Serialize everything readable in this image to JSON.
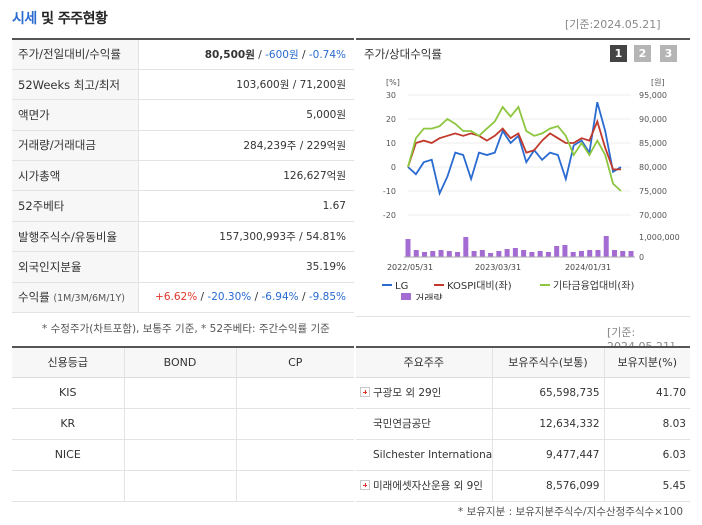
{
  "header": {
    "title_accent": "시세",
    "title_rest": " 및 주주현황",
    "date": "[기준:2024.05.21]"
  },
  "summary": {
    "rows": [
      {
        "label": "주가/전일대비/수익률",
        "value": "",
        "price": "80,500원",
        "change": "-600원",
        "rate": "-0.74%"
      },
      {
        "label": "52Weeks 최고/최저",
        "value": "103,600원 / 71,200원"
      },
      {
        "label": "액면가",
        "value": "5,000원"
      },
      {
        "label": "거래량/거래대금",
        "value": "284,239주 / 229억원"
      },
      {
        "label": "시가총액",
        "value": "126,627억원"
      },
      {
        "label": "52주베타",
        "value": "1.67"
      },
      {
        "label": "발행주식수/유동비율",
        "value": "157,300,993주 / 54.81%"
      },
      {
        "label": "외국인지분율",
        "value": "35.19%"
      },
      {
        "label": "수익률",
        "label_sub": "(1M/3M/6M/1Y)",
        "value": "",
        "r1": "+6.62%",
        "r3": "-20.30%",
        "r6": "-6.94%",
        "r12": "-9.85%"
      }
    ],
    "note": "* 수정주가(차트포함), 보통주 기준, * 52주베타: 주간수익률 기준"
  },
  "chart": {
    "title": "주가/상대수익률",
    "buttons": [
      "1",
      "2",
      "3"
    ],
    "left_unit": "[%]",
    "right_unit": "[원]",
    "legend": {
      "lg": "LG",
      "kospi": "KOSPI대비(좌)",
      "fin": "기타금융업대비(좌)",
      "volume": "거래량"
    },
    "colors": {
      "lg": "#2a6bd1",
      "kospi": "#c0392b",
      "fin": "#8dc63f",
      "volume": "#a46bd2"
    }
  },
  "chart_data": {
    "type": "line",
    "x_ticks": [
      "2022/05/31",
      "2023/03/31",
      "2024/01/31"
    ],
    "ylim_left": [
      -20,
      30
    ],
    "yticks_left": [
      "30",
      "20",
      "10",
      "0",
      "-10",
      "-20"
    ],
    "ylim_right": [
      70000,
      95000
    ],
    "yticks_right": [
      "95,000",
      "90,000",
      "85,000",
      "80,000",
      "75,000",
      "70,000"
    ],
    "volume_ticks": [
      "1,000,000",
      "0"
    ],
    "series": [
      {
        "name": "LG",
        "values": [
          0,
          -3,
          2,
          3,
          -11,
          -4,
          6,
          5,
          -5,
          6,
          5,
          6,
          15,
          10,
          13,
          2,
          7,
          3,
          6,
          5,
          -5,
          9,
          11,
          6,
          27,
          15,
          -2,
          0
        ]
      },
      {
        "name": "KOSPI대비(좌)",
        "values": [
          0,
          10,
          11,
          10,
          12,
          13,
          14,
          13,
          14,
          13,
          11,
          13,
          16,
          12,
          14,
          6,
          7,
          11,
          14,
          12,
          10,
          10,
          12,
          11,
          19,
          8,
          -1,
          -1
        ]
      },
      {
        "name": "기타금융업대비(좌)",
        "values": [
          0,
          12,
          16,
          16,
          17,
          20,
          18,
          15,
          15,
          13,
          16,
          19,
          25,
          21,
          25,
          15,
          13,
          14,
          16,
          17,
          13,
          5,
          10,
          5,
          11,
          5,
          -7,
          -10
        ]
      }
    ],
    "volume": {
      "name": "거래량",
      "values": [
        0.9,
        0.35,
        0.25,
        0.3,
        0.35,
        0.3,
        0.25,
        1.0,
        0.3,
        0.35,
        0.2,
        0.3,
        0.4,
        0.45,
        0.35,
        0.25,
        0.3,
        0.25,
        0.55,
        0.6,
        0.25,
        0.3,
        0.35,
        0.35,
        1.05,
        0.35,
        0.3,
        0.3
      ]
    }
  },
  "credit": {
    "headers": [
      "신용등급",
      "BOND",
      "CP"
    ],
    "rows": [
      {
        "agency": "KIS",
        "bond": "",
        "cp": ""
      },
      {
        "agency": "KR",
        "bond": "",
        "cp": ""
      },
      {
        "agency": "NICE",
        "bond": "",
        "cp": ""
      }
    ]
  },
  "holders": {
    "date": "[기준: 2024.05.21]",
    "headers": [
      "주요주주",
      "보유주식수(보통)",
      "보유지분(%)"
    ],
    "rows": [
      {
        "name": "구광모 외 29인",
        "shares": "65,598,735",
        "pct": "41.70",
        "expand": true
      },
      {
        "name": "국민연금공단",
        "shares": "12,634,332",
        "pct": "8.03",
        "expand": false
      },
      {
        "name": "Silchester International…",
        "shares": "9,477,447",
        "pct": "6.03",
        "expand": false
      },
      {
        "name": "미래에셋자산운용 외 9인",
        "shares": "8,576,099",
        "pct": "5.45",
        "expand": true
      }
    ],
    "note": "* 보유지분 : 보유지분주식수/지수산정주식수×100"
  }
}
